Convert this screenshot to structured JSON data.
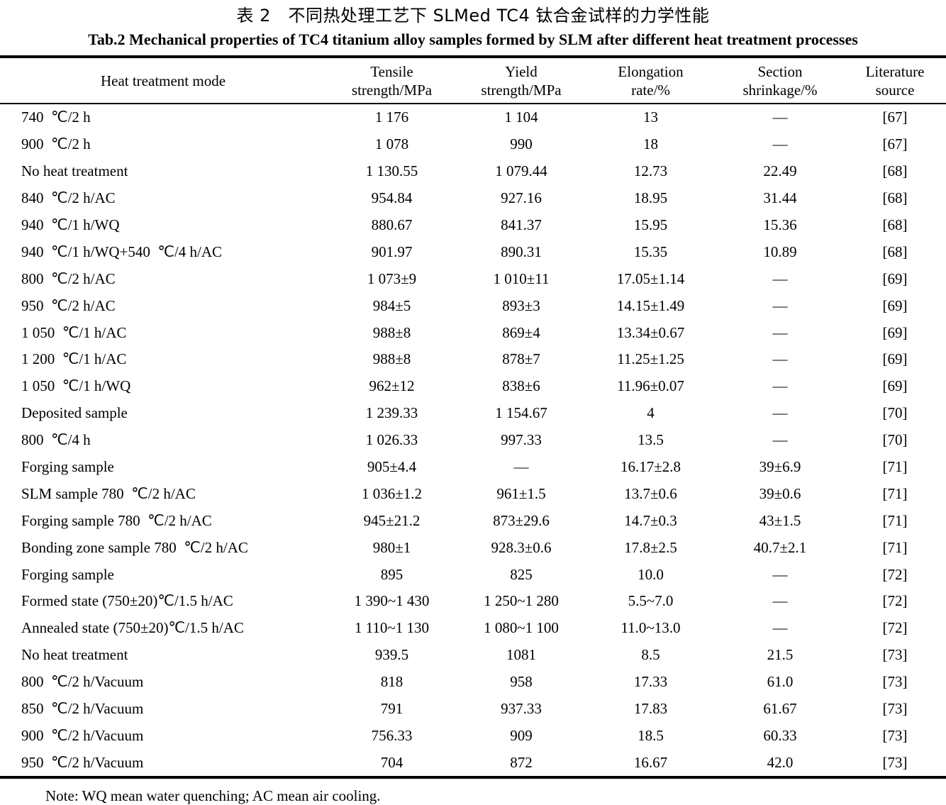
{
  "table": {
    "title_zh": "表 2　不同热处理工艺下 SLMed TC4 钛合金试样的力学性能",
    "title_en": "Tab.2 Mechanical properties of TC4 titanium alloy samples formed by SLM after different heat treatment processes",
    "headers": [
      {
        "l1": "Heat treatment mode",
        "l2": ""
      },
      {
        "l1": "Tensile",
        "l2": "strength/MPa"
      },
      {
        "l1": "Yield",
        "l2": "strength/MPa"
      },
      {
        "l1": "Elongation",
        "l2": "rate/%"
      },
      {
        "l1": "Section",
        "l2": "shrinkage/%"
      },
      {
        "l1": "Literature",
        "l2": "source"
      }
    ],
    "rows": [
      [
        "740  ℃/2 h",
        "1 176",
        "1 104",
        "13",
        "—",
        "[67]"
      ],
      [
        "900  ℃/2 h",
        "1 078",
        "990",
        "18",
        "—",
        "[67]"
      ],
      [
        "No heat treatment",
        "1 130.55",
        "1 079.44",
        "12.73",
        "22.49",
        "[68]"
      ],
      [
        "840  ℃/2 h/AC",
        "954.84",
        "927.16",
        "18.95",
        "31.44",
        "[68]"
      ],
      [
        "940  ℃/1 h/WQ",
        "880.67",
        "841.37",
        "15.95",
        "15.36",
        "[68]"
      ],
      [
        "940  ℃/1 h/WQ+540  ℃/4 h/AC",
        "901.97",
        "890.31",
        "15.35",
        "10.89",
        "[68]"
      ],
      [
        "800  ℃/2 h/AC",
        "1 073±9",
        "1 010±11",
        "17.05±1.14",
        "—",
        "[69]"
      ],
      [
        "950  ℃/2 h/AC",
        "984±5",
        "893±3",
        "14.15±1.49",
        "—",
        "[69]"
      ],
      [
        "1 050  ℃/1 h/AC",
        "988±8",
        "869±4",
        "13.34±0.67",
        "—",
        "[69]"
      ],
      [
        "1 200  ℃/1 h/AC",
        "988±8",
        "878±7",
        "11.25±1.25",
        "—",
        "[69]"
      ],
      [
        "1 050  ℃/1 h/WQ",
        "962±12",
        "838±6",
        "11.96±0.07",
        "—",
        "[69]"
      ],
      [
        "Deposited sample",
        "1 239.33",
        "1 154.67",
        "4",
        "—",
        "[70]"
      ],
      [
        "800  ℃/4 h",
        "1 026.33",
        "997.33",
        "13.5",
        "—",
        "[70]"
      ],
      [
        "Forging sample",
        "905±4.4",
        "—",
        "16.17±2.8",
        "39±6.9",
        "[71]"
      ],
      [
        "SLM sample 780  ℃/2 h/AC",
        "1 036±1.2",
        "961±1.5",
        "13.7±0.6",
        "39±0.6",
        "[71]"
      ],
      [
        "Forging sample 780  ℃/2 h/AC",
        "945±21.2",
        "873±29.6",
        "14.7±0.3",
        "43±1.5",
        "[71]"
      ],
      [
        "Bonding zone sample 780  ℃/2 h/AC",
        "980±1",
        "928.3±0.6",
        "17.8±2.5",
        "40.7±2.1",
        "[71]"
      ],
      [
        "Forging sample",
        "895",
        "825",
        "10.0",
        "—",
        "[72]"
      ],
      [
        "Formed state (750±20)℃/1.5 h/AC",
        "1 390~1 430",
        "1 250~1 280",
        "5.5~7.0",
        "—",
        "[72]"
      ],
      [
        "Annealed state (750±20)℃/1.5 h/AC",
        "1 110~1 130",
        "1 080~1 100",
        "11.0~13.0",
        "—",
        "[72]"
      ],
      [
        "No heat treatment",
        "939.5",
        "1081",
        "8.5",
        "21.5",
        "[73]"
      ],
      [
        "800  ℃/2 h/Vacuum",
        "818",
        "958",
        "17.33",
        "61.0",
        "[73]"
      ],
      [
        "850  ℃/2 h/Vacuum",
        "791",
        "937.33",
        "17.83",
        "61.67",
        "[73]"
      ],
      [
        "900  ℃/2 h/Vacuum",
        "756.33",
        "909",
        "18.5",
        "60.33",
        "[73]"
      ],
      [
        "950  ℃/2 h/Vacuum",
        "704",
        "872",
        "16.67",
        "42.0",
        "[73]"
      ]
    ],
    "note": "Note: WQ mean water quenching; AC mean air cooling."
  }
}
